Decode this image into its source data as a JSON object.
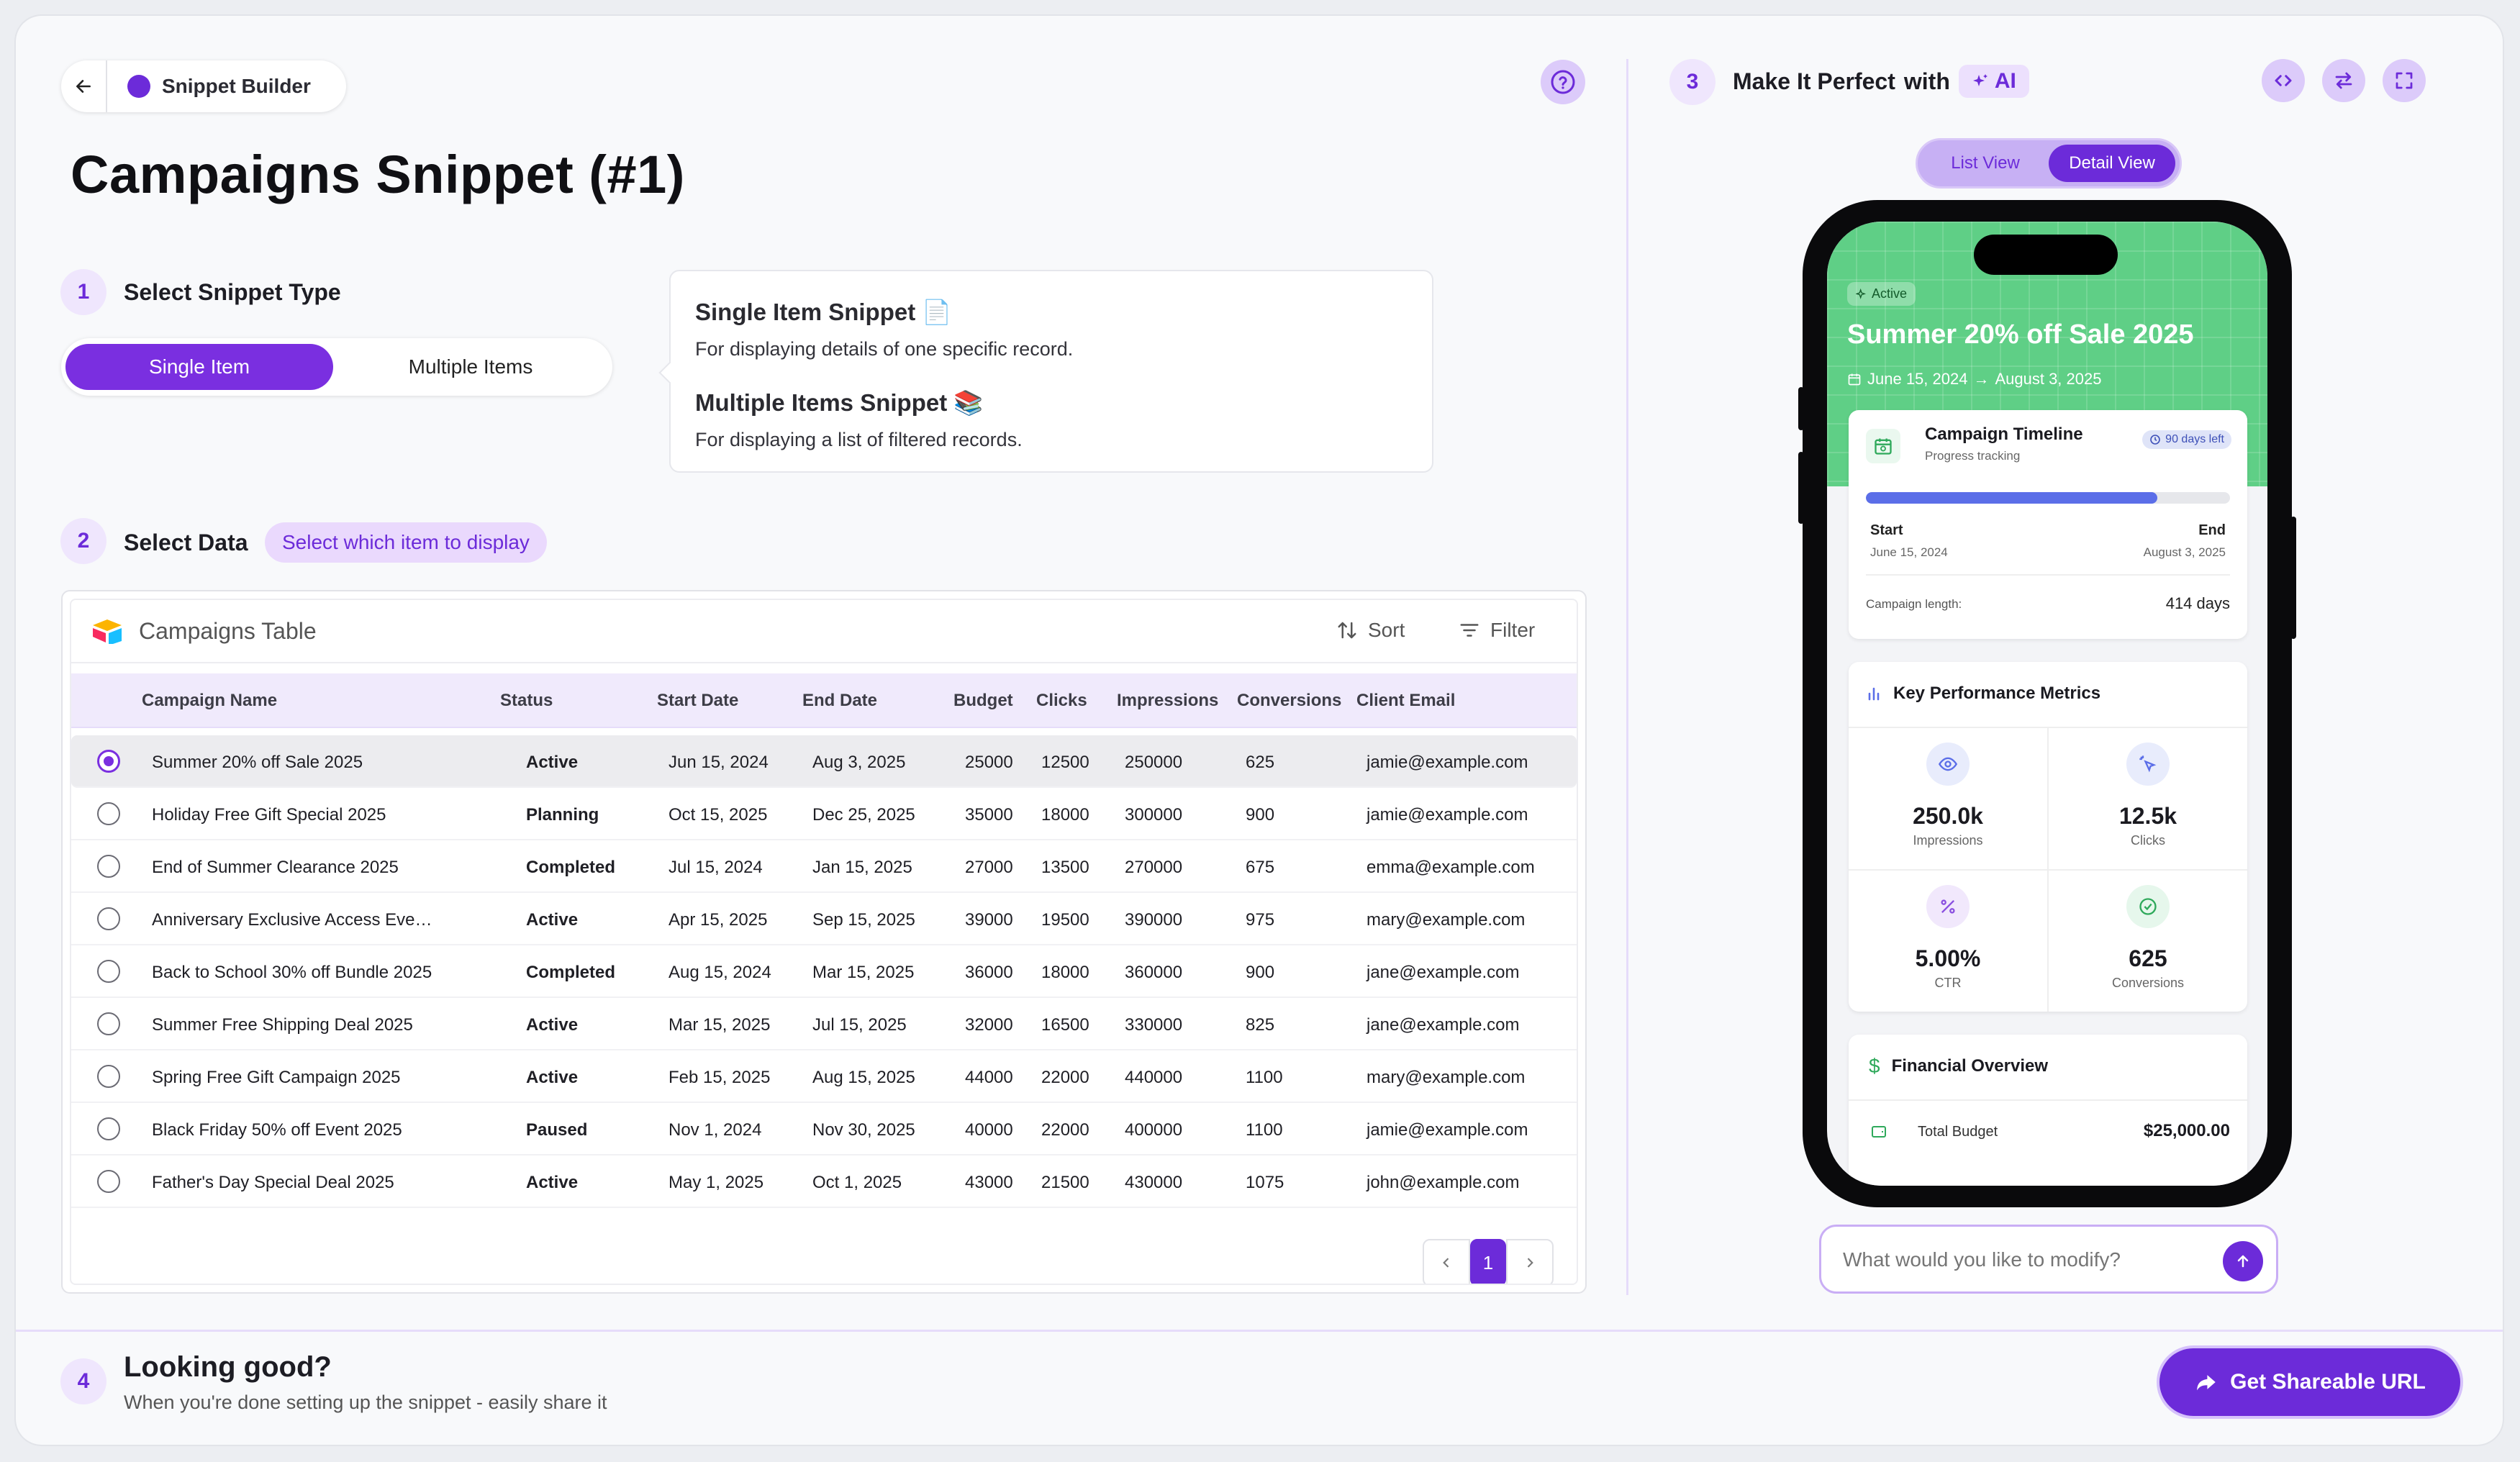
{
  "header": {
    "back_icon": "arrow-left-icon",
    "app_name": "Snippet Builder",
    "help_icon": "question-circle-icon"
  },
  "page_title": "Campaigns Snippet (#1)",
  "step1": {
    "number": "1",
    "label": "Select Snippet Type",
    "options": [
      "Single Item",
      "Multiple Items"
    ],
    "selected": "Single Item",
    "info": {
      "single_title": "Single Item Snippet 📄",
      "single_desc": "For displaying details of one specific record.",
      "multiple_title": "Multiple Items Snippet 📚",
      "multiple_desc": "For displaying a list of filtered records."
    }
  },
  "step2": {
    "number": "2",
    "label": "Select Data",
    "hint": "Select which item to display",
    "table": {
      "name": "Campaigns Table",
      "sort_label": "Sort",
      "filter_label": "Filter",
      "columns": [
        "Campaign Name",
        "Status",
        "Start Date",
        "End Date",
        "Budget",
        "Clicks",
        "Impressions",
        "Conversions",
        "Client Email"
      ],
      "rows": [
        [
          "Summer 20% off Sale 2025",
          "Active",
          "Jun 15, 2024",
          "Aug 3, 2025",
          "25000",
          "12500",
          "250000",
          "625",
          "jamie@example.com"
        ],
        [
          "Holiday Free Gift Special 2025",
          "Planning",
          "Oct 15, 2025",
          "Dec 25, 2025",
          "35000",
          "18000",
          "300000",
          "900",
          "jamie@example.com"
        ],
        [
          "End of Summer Clearance 2025",
          "Completed",
          "Jul 15, 2024",
          "Jan 15, 2025",
          "27000",
          "13500",
          "270000",
          "675",
          "emma@example.com"
        ],
        [
          "Anniversary Exclusive Access Eve…",
          "Active",
          "Apr 15, 2025",
          "Sep 15, 2025",
          "39000",
          "19500",
          "390000",
          "975",
          "mary@example.com"
        ],
        [
          "Back to School 30% off Bundle 2025",
          "Completed",
          "Aug 15, 2024",
          "Mar 15, 2025",
          "36000",
          "18000",
          "360000",
          "900",
          "jane@example.com"
        ],
        [
          "Summer Free Shipping Deal 2025",
          "Active",
          "Mar 15, 2025",
          "Jul 15, 2025",
          "32000",
          "16500",
          "330000",
          "825",
          "jane@example.com"
        ],
        [
          "Spring Free Gift Campaign 2025",
          "Active",
          "Feb 15, 2025",
          "Aug 15, 2025",
          "44000",
          "22000",
          "440000",
          "1100",
          "mary@example.com"
        ],
        [
          "Black Friday 50% off Event 2025",
          "Paused",
          "Nov 1, 2024",
          "Nov 30, 2025",
          "40000",
          "22000",
          "400000",
          "1100",
          "jamie@example.com"
        ],
        [
          "Father's Day Special Deal 2025",
          "Active",
          "May 1, 2025",
          "Oct 1, 2025",
          "43000",
          "21500",
          "430000",
          "1075",
          "john@example.com"
        ]
      ],
      "selected_row": 0,
      "page": "1"
    }
  },
  "step3": {
    "number": "3",
    "label": "Make It Perfect",
    "with": "with",
    "ai_label": "AI",
    "view_toggle": {
      "list": "List View",
      "detail": "Detail View",
      "selected": "Detail View"
    },
    "tool_icons": [
      "code-icon",
      "swap-icon",
      "fullscreen-icon"
    ],
    "preview": {
      "status": "Active",
      "title": "Summer 20% off Sale 2025",
      "date_range_start": "June 15, 2024",
      "date_range_end": "August 3, 2025",
      "timeline": {
        "title": "Campaign Timeline",
        "subtitle": "Progress tracking",
        "badge": "90 days left",
        "progress": 0.8,
        "start_label": "Start",
        "start_date": "June 15, 2024",
        "end_label": "End",
        "end_date": "August 3, 2025",
        "length_label": "Campaign length:",
        "length_value": "414 days"
      },
      "kpi": {
        "title": "Key Performance Metrics",
        "items": [
          {
            "value": "250.0k",
            "label": "Impressions",
            "icon": "eye-icon"
          },
          {
            "value": "12.5k",
            "label": "Clicks",
            "icon": "sparkle-click-icon"
          },
          {
            "value": "5.00%",
            "label": "CTR",
            "icon": "percent-icon"
          },
          {
            "value": "625",
            "label": "Conversions",
            "icon": "check-circle-icon"
          }
        ]
      },
      "financial": {
        "title": "Financial Overview",
        "budget_label": "Total Budget",
        "budget_value": "$25,000.00"
      }
    },
    "modify_placeholder": "What would you like to modify?"
  },
  "step4": {
    "number": "4",
    "title": "Looking good?",
    "subtitle": "When you're done setting up the snippet - easily share it",
    "share_button": "Get Shareable URL"
  },
  "colors": {
    "accent": "#6c2bd9",
    "hero_green": "#5fcf86",
    "progress_blue": "#5b6ee8"
  }
}
